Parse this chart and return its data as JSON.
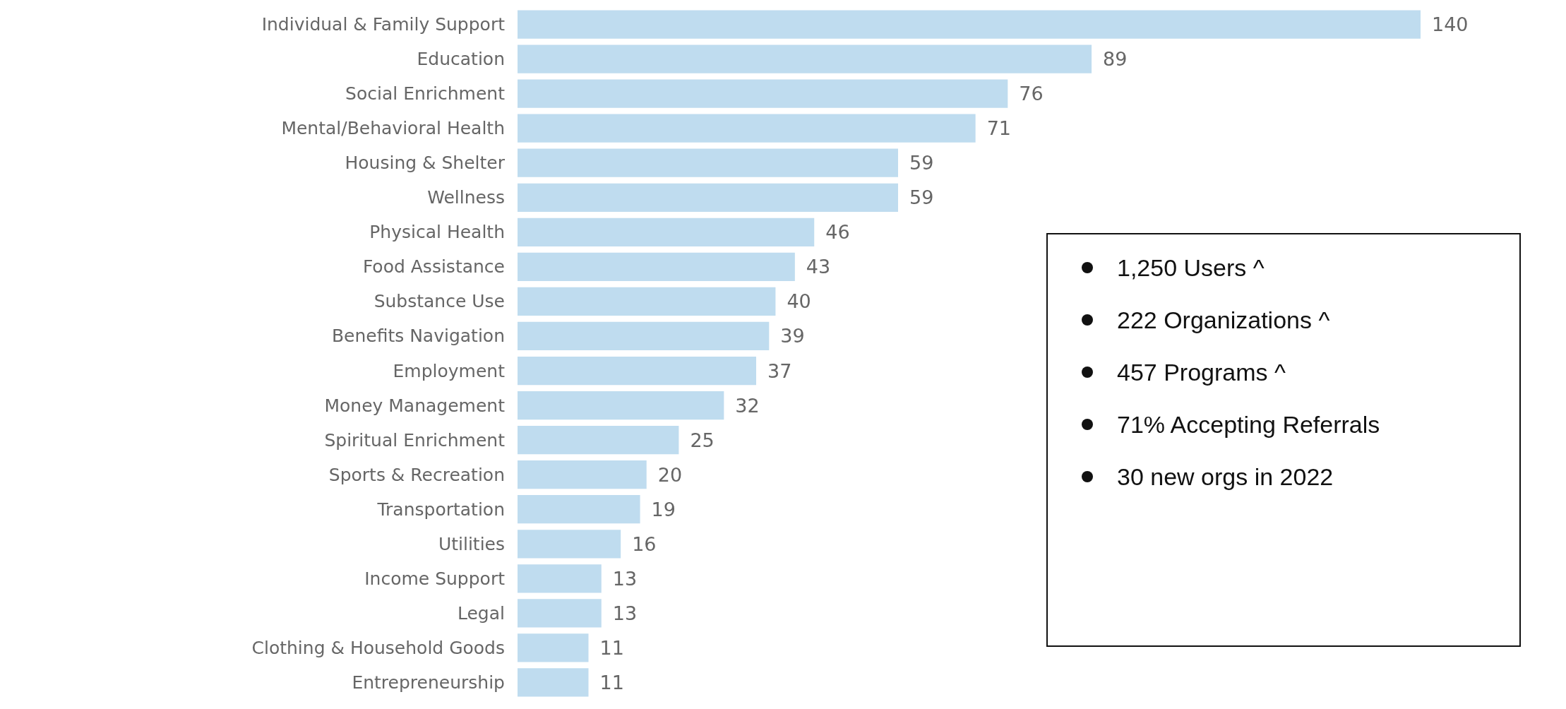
{
  "chart_data": {
    "type": "bar",
    "orientation": "horizontal",
    "data_labels": true,
    "color": "#bfdcef",
    "categories": [
      "Individual & Family Support",
      "Education",
      "Social Enrichment",
      "Mental/Behavioral Health",
      "Housing & Shelter",
      "Wellness",
      "Physical Health",
      "Food Assistance",
      "Substance Use",
      "Benefits Navigation",
      "Employment",
      "Money Management",
      "Spiritual Enrichment",
      "Sports & Recreation",
      "Transportation",
      "Utilities",
      "Income Support",
      "Legal",
      "Clothing & Household Goods",
      "Entrepreneurship"
    ],
    "values": [
      140,
      89,
      76,
      71,
      59,
      59,
      46,
      43,
      40,
      39,
      37,
      32,
      25,
      20,
      19,
      16,
      13,
      13,
      11,
      11
    ],
    "annotations": [
      "1,250 Users ^",
      "222 Organizations ^",
      "457 Programs ^",
      "71% Accepting Referrals",
      "30 new orgs in 2022"
    ]
  }
}
